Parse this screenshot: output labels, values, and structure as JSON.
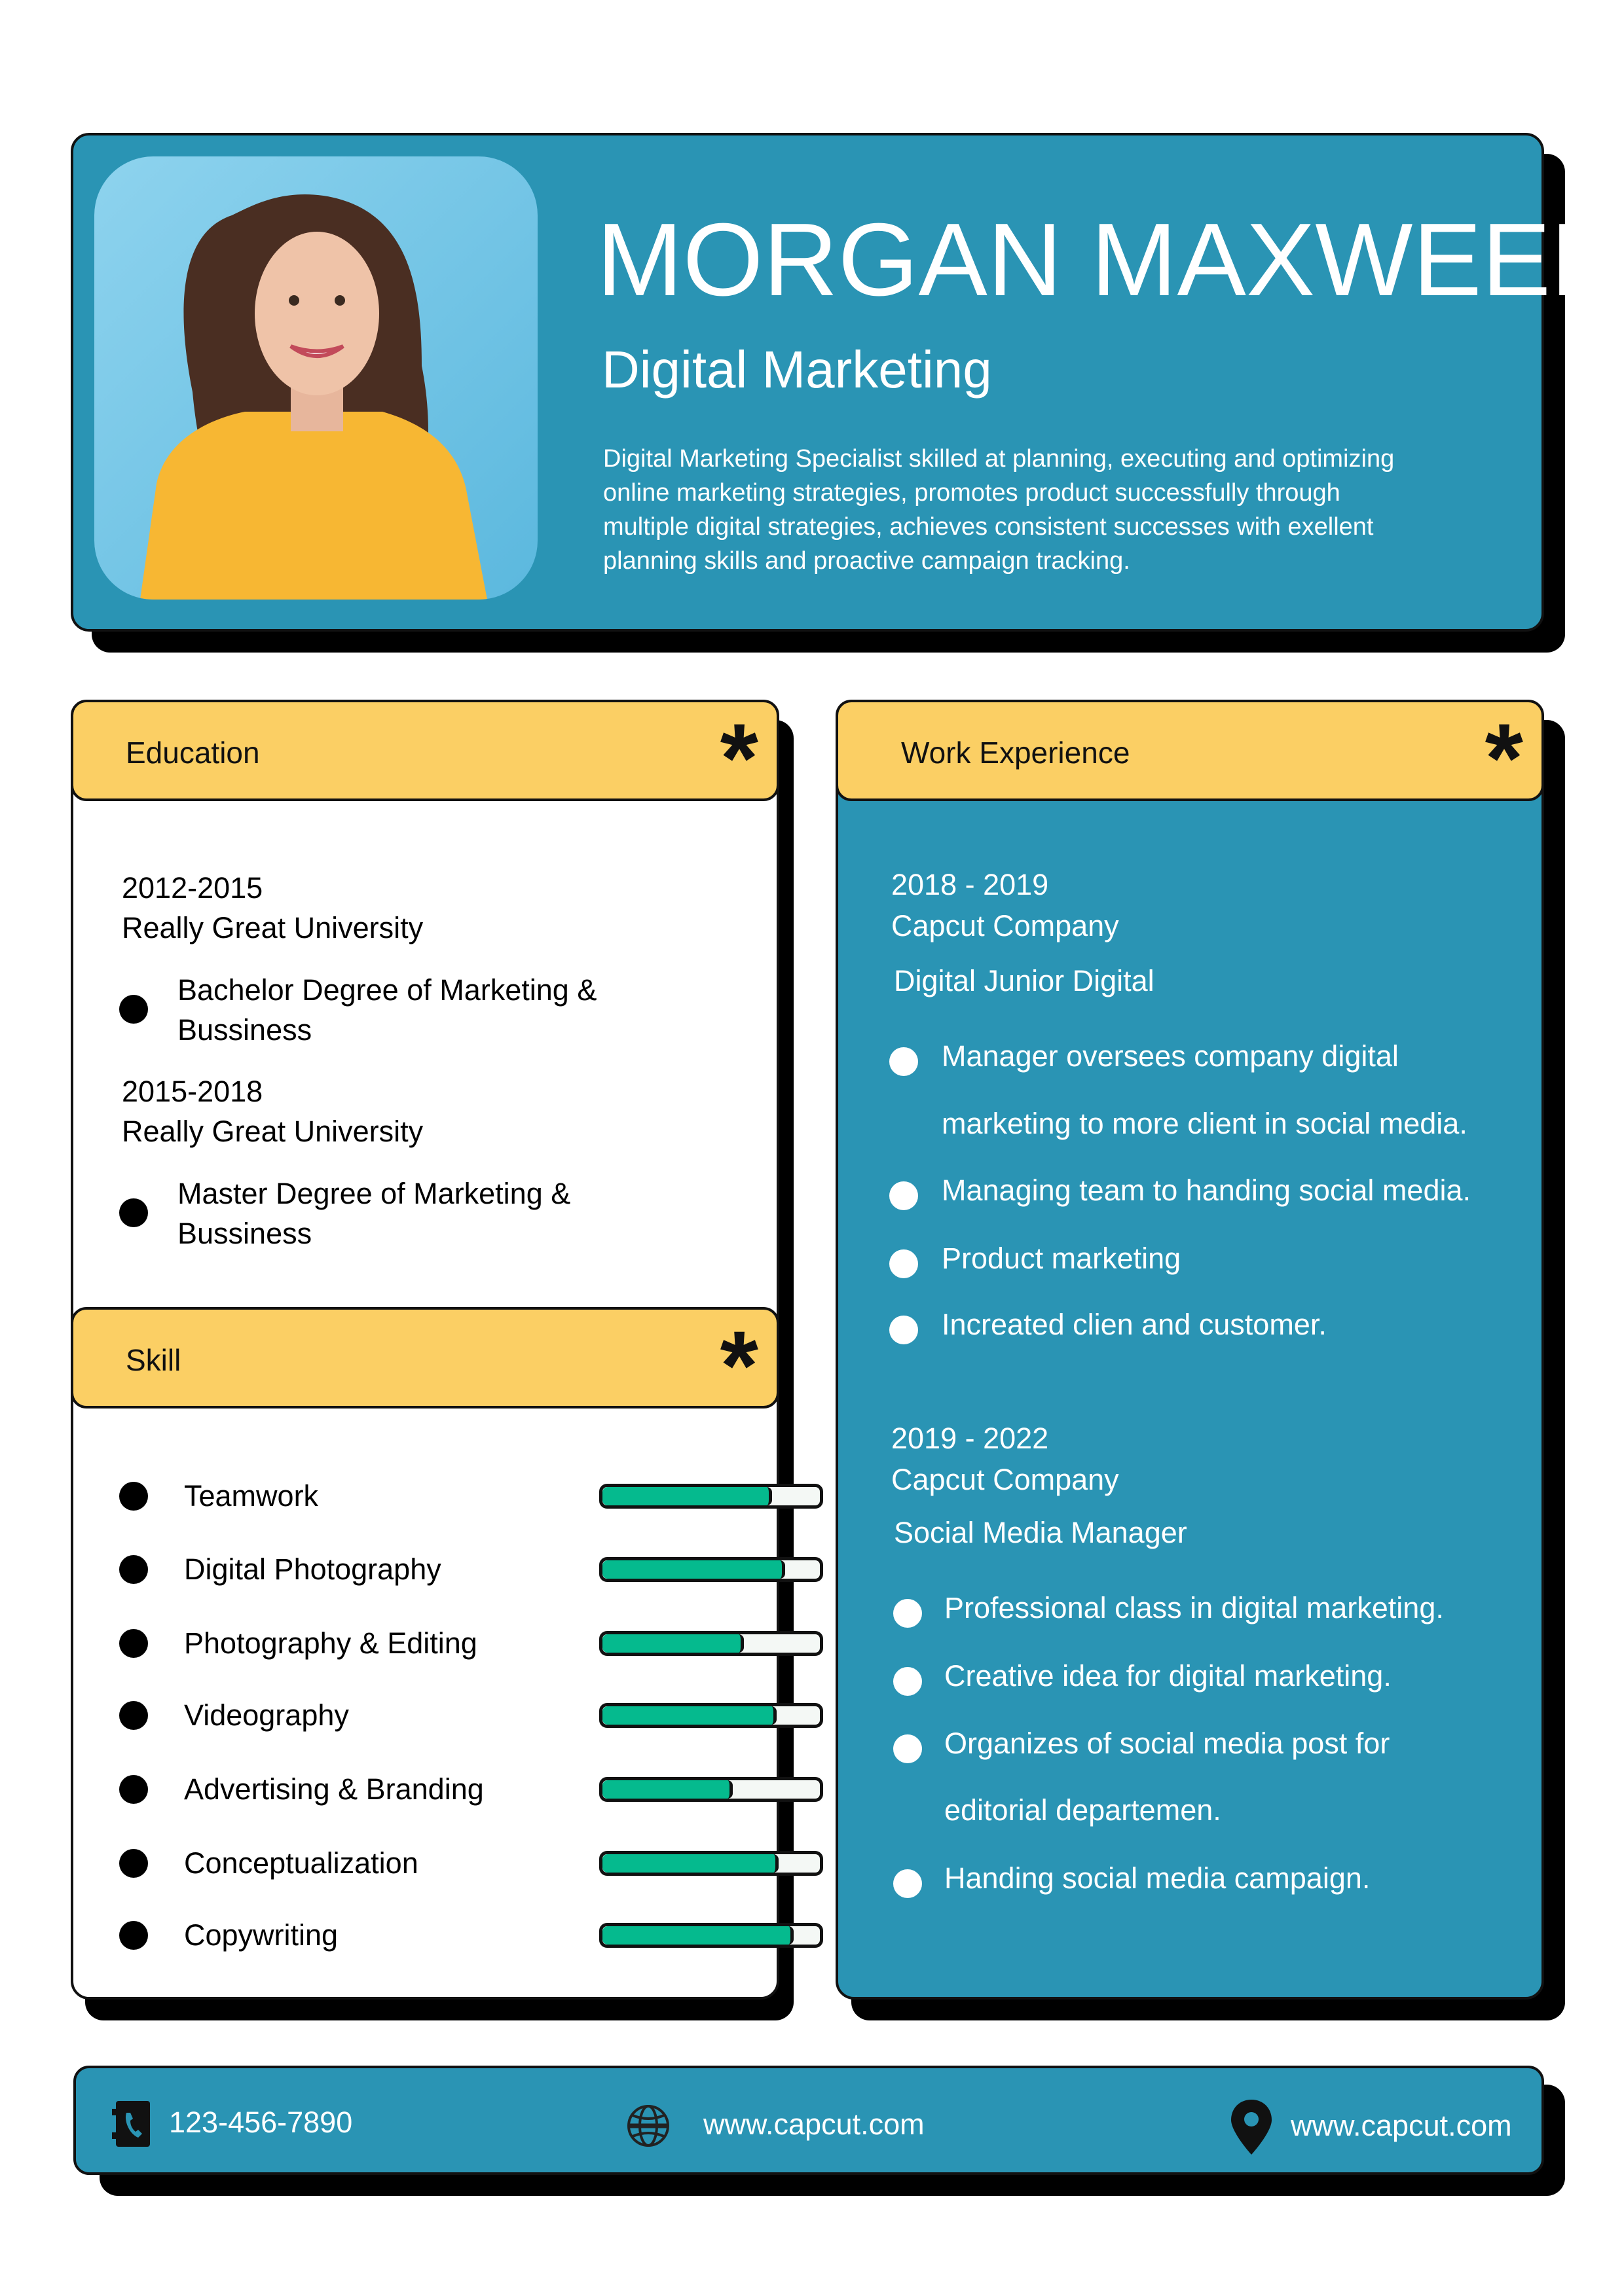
{
  "header": {
    "name": "MORGAN MAXWEEL",
    "title": "Digital Marketing",
    "summary_lines": [
      "Digital Marketing Specialist skilled at planning, executing and optimizing",
      "online marketing strategies, promotes product successfully through",
      "multiple digital strategies, achieves consistent successes with exellent",
      "planning skills and proactive campaign tracking."
    ]
  },
  "education": {
    "heading": "Education",
    "entries": [
      {
        "years": "2012-2015",
        "school": "Really Great University",
        "degree_lines": [
          "Bachelor Degree of Marketing &",
          "Bussiness"
        ]
      },
      {
        "years": "2015-2018",
        "school": "Really Great University",
        "degree_lines": [
          "Master Degree of Marketing &",
          "Bussiness"
        ]
      }
    ]
  },
  "skills": {
    "heading": "Skill",
    "items": [
      {
        "label": "Teamwork",
        "level": 0.78
      },
      {
        "label": "Digital Photography",
        "level": 0.84
      },
      {
        "label": "Photography & Editing",
        "level": 0.65
      },
      {
        "label": "Videography",
        "level": 0.8
      },
      {
        "label": "Advertising & Branding",
        "level": 0.6
      },
      {
        "label": "Conceptualization",
        "level": 0.81
      },
      {
        "label": "Copywriting",
        "level": 0.88
      }
    ]
  },
  "work": {
    "heading": "Work Experience",
    "jobs": [
      {
        "years": "2018 - 2019",
        "company": "Capcut Company",
        "role": "Digital Junior Digital",
        "bullets": [
          "Manager oversees company digital",
          "marketing to more client in social media.",
          "Managing team to handing social media.",
          "Product marketing",
          "Increated clien and customer."
        ]
      },
      {
        "years": "2019 - 2022",
        "company": "Capcut Company",
        "role": "Social Media Manager",
        "bullets": [
          "Professional class in digital marketing.",
          "Creative idea for digital marketing.",
          "Organizes of social media post for",
          "editorial departemen.",
          "Handing social media campaign."
        ]
      }
    ]
  },
  "contact": {
    "phone": "123-456-7890",
    "website": "www.capcut.com",
    "location": "www.capcut.com"
  },
  "colors": {
    "teal": "#2A94B4",
    "yellow": "#FBCF64",
    "green": "#05BA8E",
    "black": "#111111"
  },
  "icons": {
    "phone": "phone-icon",
    "web": "globe-icon",
    "location": "map-pin-icon",
    "section": "asterisk-icon"
  }
}
